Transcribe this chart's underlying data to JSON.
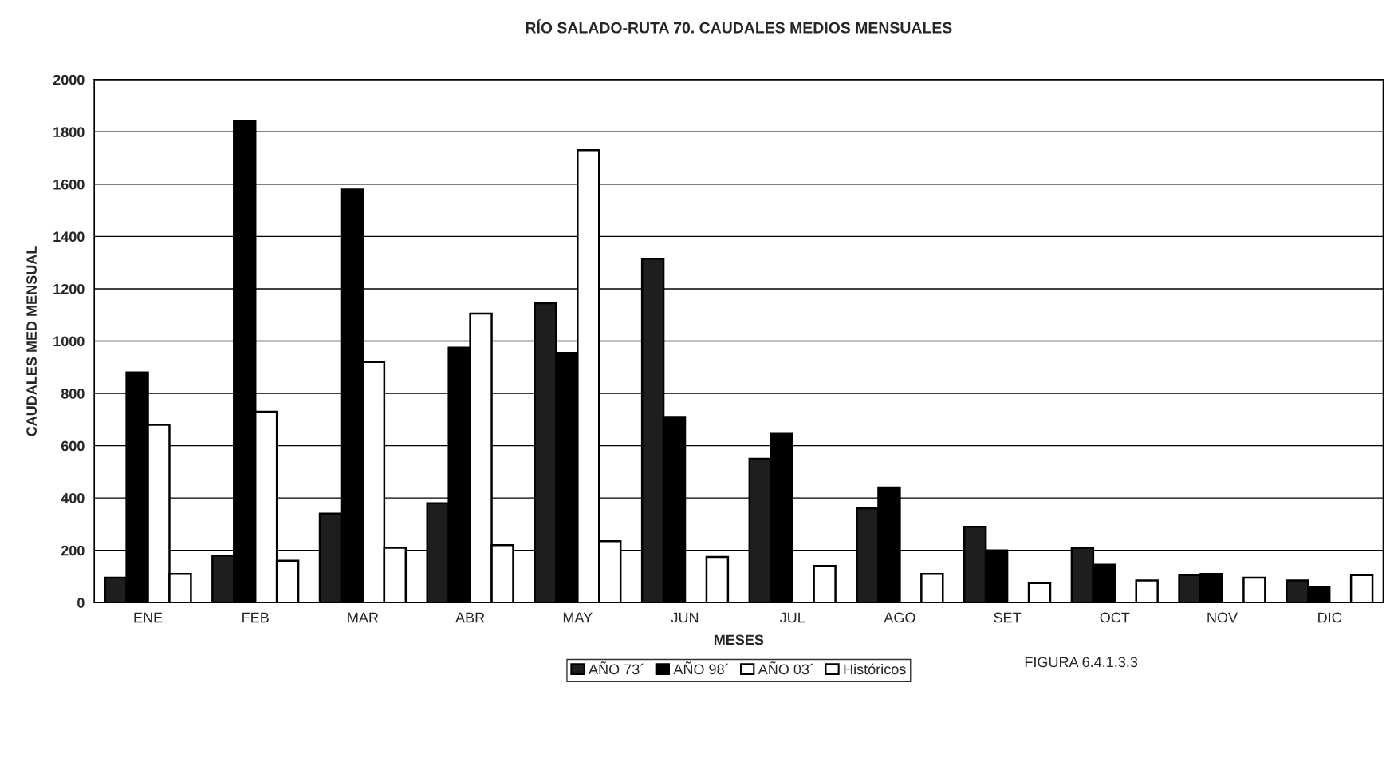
{
  "chart_data": {
    "type": "bar",
    "title": "RÍO SALADO-RUTA 70. CAUDALES MEDIOS MENSUALES",
    "xlabel": "MESES",
    "ylabel": "CAUDALES MED MENSUAL",
    "categories": [
      "ENE",
      "FEB",
      "MAR",
      "ABR",
      "MAY",
      "JUN",
      "JUL",
      "AGO",
      "SET",
      "OCT",
      "NOV",
      "DIC"
    ],
    "series": [
      {
        "name": "AÑO 73´",
        "color": "#1e1e1e",
        "values": [
          95,
          180,
          340,
          380,
          1145,
          1315,
          550,
          360,
          290,
          210,
          105,
          85
        ]
      },
      {
        "name": "AÑO 98´",
        "color": "#000000",
        "values": [
          880,
          1840,
          1580,
          975,
          955,
          710,
          645,
          440,
          200,
          145,
          110,
          60
        ]
      },
      {
        "name": "AÑO 03´",
        "color": "#ffffff",
        "values": [
          680,
          730,
          920,
          1105,
          1730,
          null,
          null,
          null,
          null,
          null,
          null,
          null
        ]
      },
      {
        "name": "Históricos",
        "color": "#ffffff",
        "values": [
          110,
          160,
          210,
          220,
          235,
          175,
          140,
          110,
          75,
          85,
          95,
          105
        ]
      }
    ],
    "ylim": [
      0,
      2000
    ],
    "yticks": [
      0,
      200,
      400,
      600,
      800,
      1000,
      1200,
      1400,
      1600,
      1800,
      2000
    ],
    "grid": "y",
    "legend": "bottom",
    "annotations": [
      "FIGURA 6.4.1.3.3"
    ]
  }
}
